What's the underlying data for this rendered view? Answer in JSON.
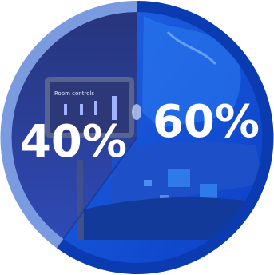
{
  "graphic": {
    "segments": [
      {
        "label": "40%",
        "value": 40,
        "color": "#2a3f9a",
        "ring_color": "#7b9be0"
      },
      {
        "label": "60%",
        "value": 60,
        "color": "#1a4fd4",
        "ring_color": "#0a3bb0"
      }
    ],
    "left_photo_subject": "room-control-touch-panel-photo",
    "left_screen_text": "Room controls",
    "right_photo_subject": "circuit-board-and-water-photo"
  }
}
